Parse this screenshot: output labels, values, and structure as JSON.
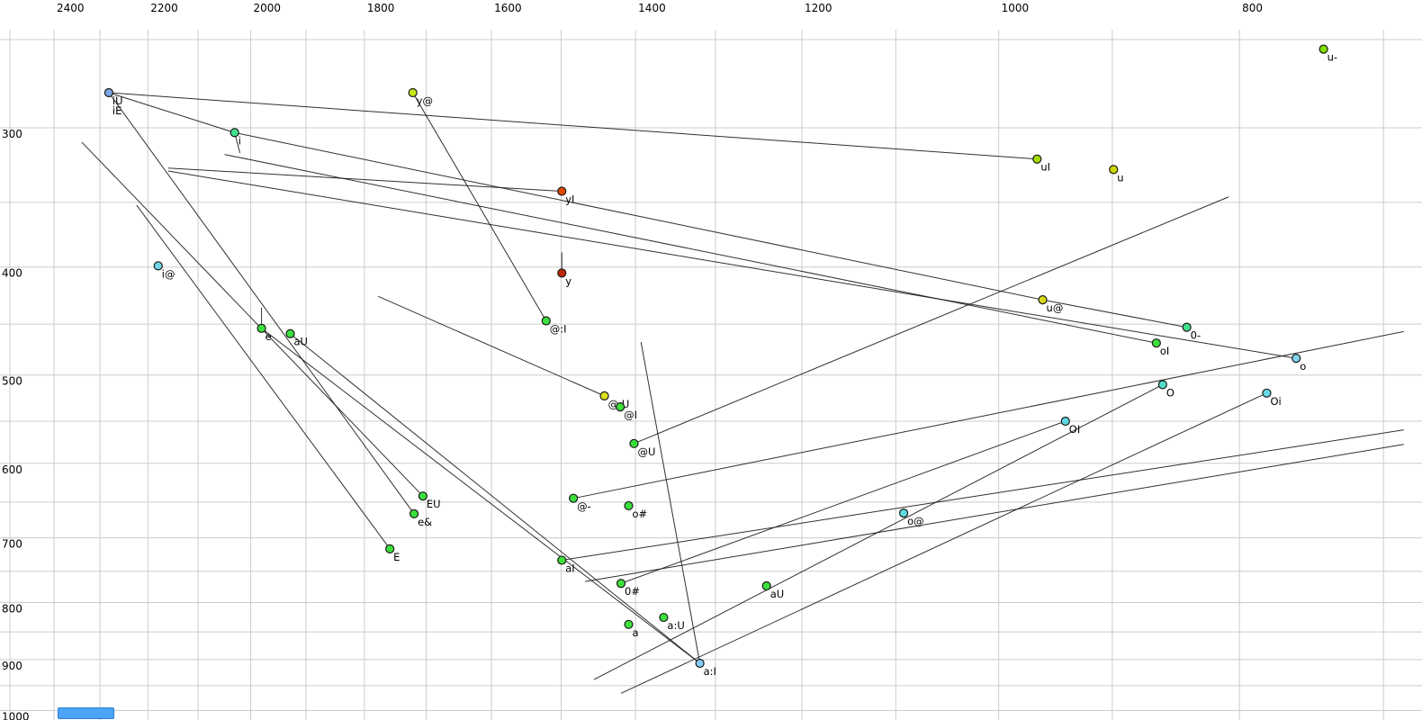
{
  "chart_data": {
    "type": "scatter",
    "title": "",
    "x_axis": {
      "unit": "Hz",
      "scale": "log",
      "reversed": true,
      "tick_values": [
        2400,
        2200,
        2000,
        1800,
        1600,
        1400,
        1200,
        1000,
        800
      ],
      "tick_labels": [
        "2400",
        "2200",
        "2000",
        "1800",
        "1600",
        "1400",
        "1200",
        "1000",
        "800"
      ],
      "range": [
        2523,
        675
      ],
      "gridline_step": 100
    },
    "y_axis": {
      "unit": "Hz",
      "scale": "log",
      "reversed": false,
      "tick_values": [
        300,
        400,
        500,
        600,
        700,
        800,
        900,
        1000
      ],
      "tick_labels": [
        "300",
        "400",
        "500",
        "600",
        "700",
        "800",
        "900",
        "1000"
      ],
      "range": [
        230,
        1020
      ],
      "gridline_step": 50
    },
    "grid_color": "#cccccc",
    "line_color": "#1a1a1a",
    "points": [
      {
        "label": "iU",
        "f2": 2281,
        "f1": 279,
        "color": "#7aa8e0"
      },
      {
        "label": "iE",
        "f2": 2281,
        "f1": 279,
        "color": "#7aa8e0",
        "no_dot": true,
        "label_line": 2
      },
      {
        "label": "i",
        "f2": 2030,
        "f1": 303,
        "color": "#40e08c"
      },
      {
        "label": "y@",
        "f2": 1721,
        "f1": 279,
        "color": "#c8e818"
      },
      {
        "label": "u-",
        "f2": 740,
        "f1": 255,
        "color": "#84e000"
      },
      {
        "label": "uI",
        "f2": 965,
        "f1": 320,
        "color": "#a4dc00"
      },
      {
        "label": "u",
        "f2": 899,
        "f1": 327,
        "color": "#ccd800"
      },
      {
        "label": "yI",
        "f2": 1499,
        "f1": 342,
        "color": "#e04800"
      },
      {
        "label": "i@",
        "f2": 2179,
        "f1": 399,
        "color": "#70d8e8"
      },
      {
        "label": "y",
        "f2": 1499,
        "f1": 405,
        "color": "#bc2808"
      },
      {
        "label": "u@",
        "f2": 960,
        "f1": 428,
        "color": "#d8d81c"
      },
      {
        "label": "@:I",
        "f2": 1521,
        "f1": 447,
        "color": "#3ce03c"
      },
      {
        "label": "e",
        "f2": 1980,
        "f1": 454,
        "color": "#3ce03c"
      },
      {
        "label": "aU",
        "f2": 1928,
        "f1": 459,
        "color": "#3ce03c"
      },
      {
        "label": "0-",
        "f2": 840,
        "f1": 453,
        "color": "#40e08c"
      },
      {
        "label": "oI",
        "f2": 864,
        "f1": 468,
        "color": "#3ce03c"
      },
      {
        "label": "o",
        "f2": 759,
        "f1": 483,
        "color": "#80d4f0"
      },
      {
        "label": "@:U",
        "f2": 1441,
        "f1": 522,
        "color": "#dce020"
      },
      {
        "label": "@I",
        "f2": 1420,
        "f1": 534,
        "color": "#3ce03c"
      },
      {
        "label": "O",
        "f2": 859,
        "f1": 510,
        "color": "#50dcc8"
      },
      {
        "label": "Oi",
        "f2": 780,
        "f1": 519,
        "color": "#68d8e4"
      },
      {
        "label": "OI",
        "f2": 940,
        "f1": 550,
        "color": "#5cd8e4"
      },
      {
        "label": "@U",
        "f2": 1402,
        "f1": 576,
        "color": "#3ce03c"
      },
      {
        "label": "EU",
        "f2": 1705,
        "f1": 642,
        "color": "#3ce03c"
      },
      {
        "label": "e&",
        "f2": 1719,
        "f1": 666,
        "color": "#3ce03c"
      },
      {
        "label": "E",
        "f2": 1758,
        "f1": 716,
        "color": "#3ce03c"
      },
      {
        "label": "@-",
        "f2": 1483,
        "f1": 645,
        "color": "#3ce03c"
      },
      {
        "label": "o#",
        "f2": 1409,
        "f1": 655,
        "color": "#3ce03c"
      },
      {
        "label": "o@",
        "f2": 1092,
        "f1": 665,
        "color": "#60dce0"
      },
      {
        "label": "aI",
        "f2": 1499,
        "f1": 733,
        "color": "#3ce03c"
      },
      {
        "label": "0#",
        "f2": 1419,
        "f1": 769,
        "color": "#3ce03c"
      },
      {
        "label": "aU",
        "f2": 1240,
        "f1": 773,
        "color": "#3ce03c"
      },
      {
        "label": "a",
        "f2": 1409,
        "f1": 837,
        "color": "#3ce03c"
      },
      {
        "label": "a:U",
        "f2": 1364,
        "f1": 825,
        "color": "#3ce03c"
      },
      {
        "label": "a:I",
        "f2": 1319,
        "f1": 907,
        "color": "#84ccf4"
      }
    ],
    "segments": [
      [
        2281,
        279,
        965,
        320
      ],
      [
        2281,
        279,
        1719,
        666
      ],
      [
        2281,
        279,
        2030,
        303
      ],
      [
        1721,
        279,
        1521,
        447
      ],
      [
        2030,
        303,
        960,
        428
      ],
      [
        2049,
        317,
        864,
        468
      ],
      [
        2159,
        326,
        1499,
        342
      ],
      [
        2159,
        328,
        759,
        483
      ],
      [
        2339,
        309,
        1705,
        642
      ],
      [
        2223,
        352,
        1758,
        716
      ],
      [
        960,
        428,
        840,
        453
      ],
      [
        1980,
        454,
        1319,
        907
      ],
      [
        1928,
        459,
        1319,
        907
      ],
      [
        1419,
        769,
        940,
        550
      ],
      [
        1455,
        938,
        859,
        510
      ],
      [
        1419,
        965,
        780,
        519
      ],
      [
        1499,
        733,
        687,
        560
      ],
      [
        1467,
        766,
        687,
        577
      ],
      [
        1393,
        467,
        1319,
        907
      ],
      [
        1483,
        645,
        687,
        457
      ],
      [
        1777,
        425,
        1441,
        522
      ],
      [
        1402,
        576,
        808,
        346
      ],
      [
        1499,
        388,
        1499,
        405
      ],
      [
        1980,
        435,
        1980,
        454
      ],
      [
        2030,
        303,
        2020,
        316
      ]
    ]
  },
  "scrollbar": {
    "thumb_color": "#4da3f7",
    "thumb_border": "#2e7ed0"
  }
}
